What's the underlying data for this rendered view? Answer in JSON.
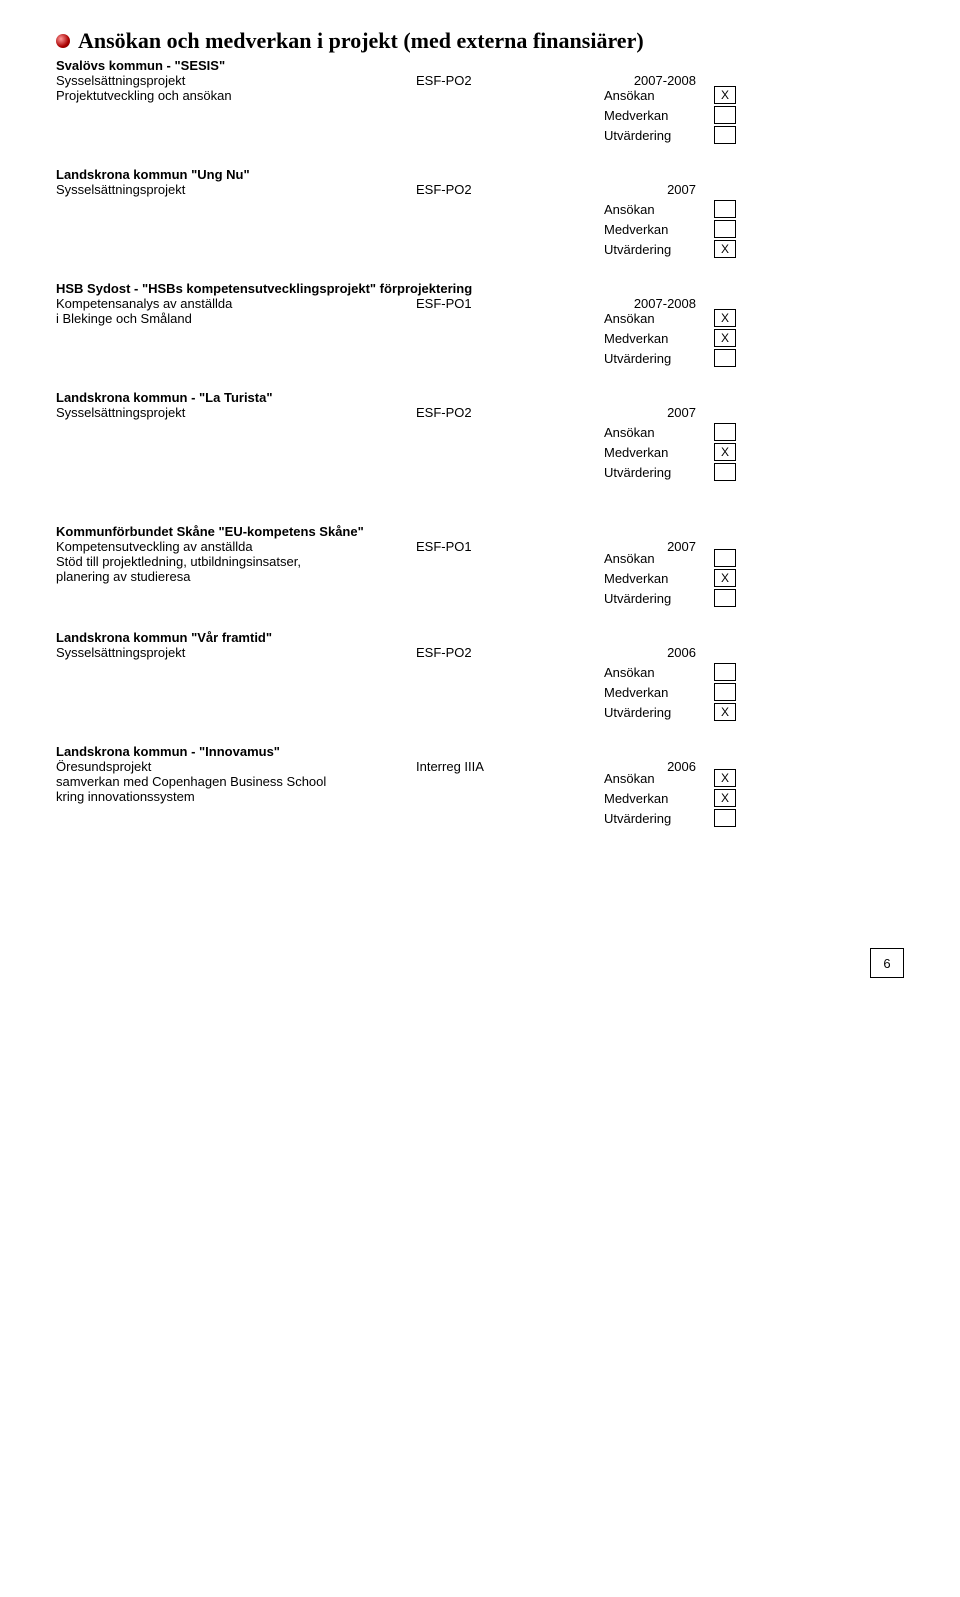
{
  "heading": "Ansökan och medverkan i projekt (med externa finansiärer)",
  "labels": {
    "ansokan": "Ansökan",
    "medverkan": "Medverkan",
    "utvardering": "Utvärdering"
  },
  "pageNumber": "6",
  "blocks": [
    {
      "org": "Svalövs kommun - \"SESIS\"",
      "line1": {
        "c1": "Sysselsättningsprojekt",
        "c2": "ESF-PO2",
        "c3": "2007-2008"
      },
      "line2": {
        "c1": "Projektutveckling och ansökan"
      },
      "marks": {
        "ansokan": "X",
        "medverkan": "",
        "utvardering": ""
      }
    },
    {
      "org": "Landskrona kommun \"Ung Nu\"",
      "line1": {
        "c1": "Sysselsättningsprojekt",
        "c2": "ESF-PO2",
        "c3": "2007"
      },
      "marks": {
        "ansokan": "",
        "medverkan": "",
        "utvardering": "X"
      }
    },
    {
      "org": "HSB Sydost - \"HSBs kompetensutvecklingsprojekt\" förprojektering",
      "line1": {
        "c1": "Kompetensanalys av anställda",
        "c2": "ESF-PO1",
        "c3": "2007-2008"
      },
      "line2": {
        "c1": "i Blekinge och Småland"
      },
      "marks": {
        "ansokan": "X",
        "medverkan": "X",
        "utvardering": ""
      }
    },
    {
      "org": "Landskrona kommun - \"La Turista\"",
      "line1": {
        "c1": "Sysselsättningsprojekt",
        "c2": "ESF-PO2",
        "c3": "2007"
      },
      "marks": {
        "ansokan": "",
        "medverkan": "X",
        "utvardering": ""
      }
    },
    {
      "org": "Kommunförbundet Skåne \"EU-kompetens Skåne\"",
      "line1": {
        "c1": "Kompetensutveckling av anställda",
        "c2": "ESF-PO1",
        "c3": "2007"
      },
      "line2": {
        "c1": "Stöd till projektledning, utbildningsinsatser,"
      },
      "line3": {
        "c1": "planering av studieresa"
      },
      "marks": {
        "ansokan": "",
        "medverkan": "X",
        "utvardering": ""
      },
      "extraTop": true
    },
    {
      "org": "Landskrona kommun \"Vår framtid\"",
      "line1": {
        "c1": "Sysselsättningsprojekt",
        "c2": "ESF-PO2",
        "c3": "2006"
      },
      "marks": {
        "ansokan": "",
        "medverkan": "",
        "utvardering": "X"
      }
    },
    {
      "org": "Landskrona kommun - \"Innovamus\"",
      "line1": {
        "c1": "Öresundsprojekt",
        "c2": "Interreg IIIA",
        "c3": "2006"
      },
      "line2": {
        "c1": "samverkan med Copenhagen Business School"
      },
      "line3": {
        "c1": "kring innovationssystem"
      },
      "marks": {
        "ansokan": "X",
        "medverkan": "X",
        "utvardering": ""
      }
    }
  ]
}
